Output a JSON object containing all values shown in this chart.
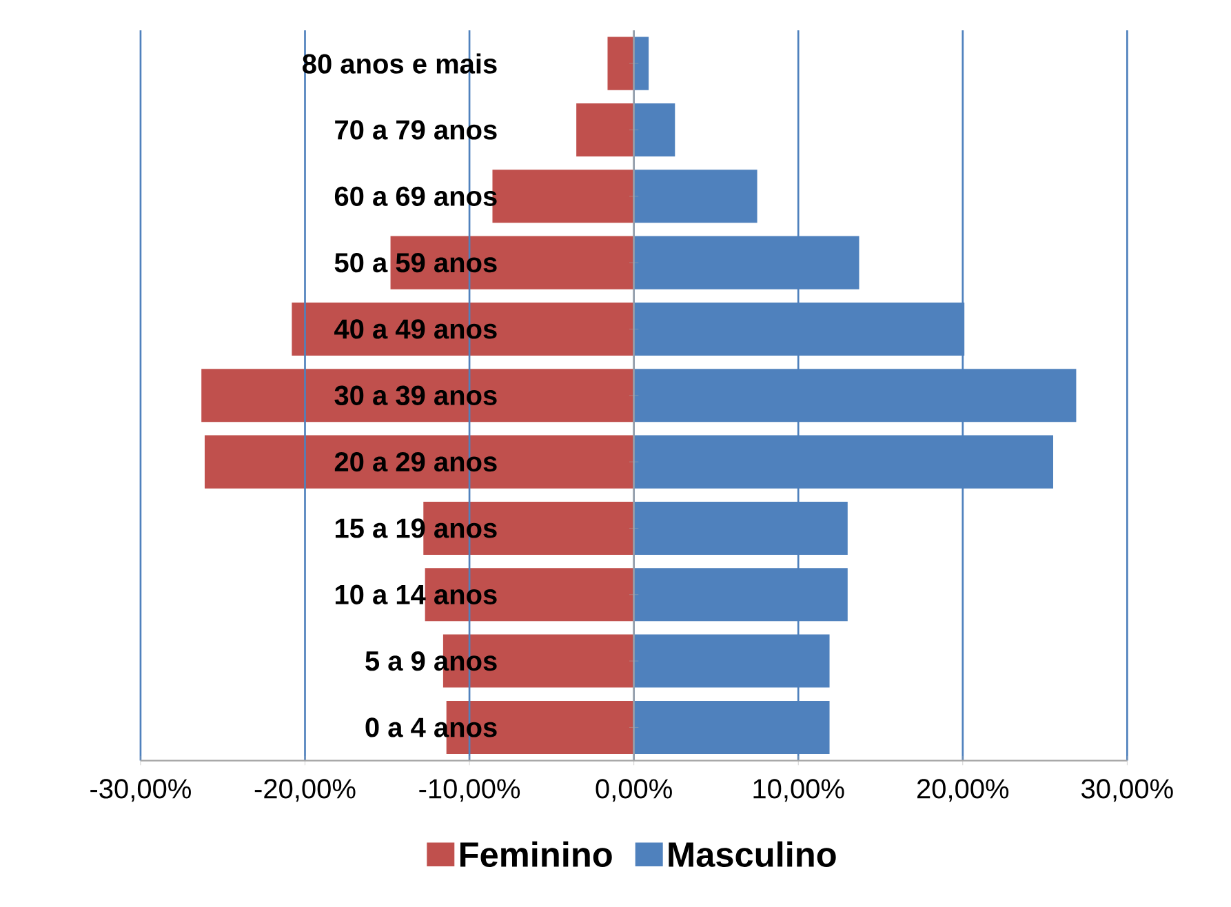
{
  "chart_data": {
    "type": "bar",
    "orientation": "horizontal",
    "categories": [
      "80 anos e mais",
      "70 a 79 anos",
      "60 a 69 anos",
      "50 a 59 anos",
      "40 a 49 anos",
      "30 a 39 anos",
      "20 a 29 anos",
      "15 a 19 anos",
      "10 a 14 anos",
      "5 a 9 anos",
      "0 a 4 anos"
    ],
    "series": [
      {
        "name": "Feminino",
        "color": "#c0504d",
        "values": [
          -1.6,
          -3.5,
          -8.6,
          -14.8,
          -20.8,
          -26.3,
          -26.1,
          -12.8,
          -12.7,
          -11.6,
          -11.4
        ]
      },
      {
        "name": "Masculino",
        "color": "#4f81bd",
        "values": [
          0.9,
          2.5,
          7.5,
          13.7,
          20.1,
          26.9,
          25.5,
          13.0,
          13.0,
          11.9,
          11.9
        ]
      }
    ],
    "xlim": [
      -30,
      30
    ],
    "xticks": [
      {
        "value": -30,
        "label": "-30,00%"
      },
      {
        "value": -20,
        "label": "-20,00%"
      },
      {
        "value": -10,
        "label": "-10,00%"
      },
      {
        "value": 0,
        "label": "0,00%"
      },
      {
        "value": 10,
        "label": "10,00%"
      },
      {
        "value": 20,
        "label": "20,00%"
      },
      {
        "value": 30,
        "label": "30,00%"
      }
    ],
    "stacked": true,
    "grid": "x",
    "legend": "bottom"
  }
}
